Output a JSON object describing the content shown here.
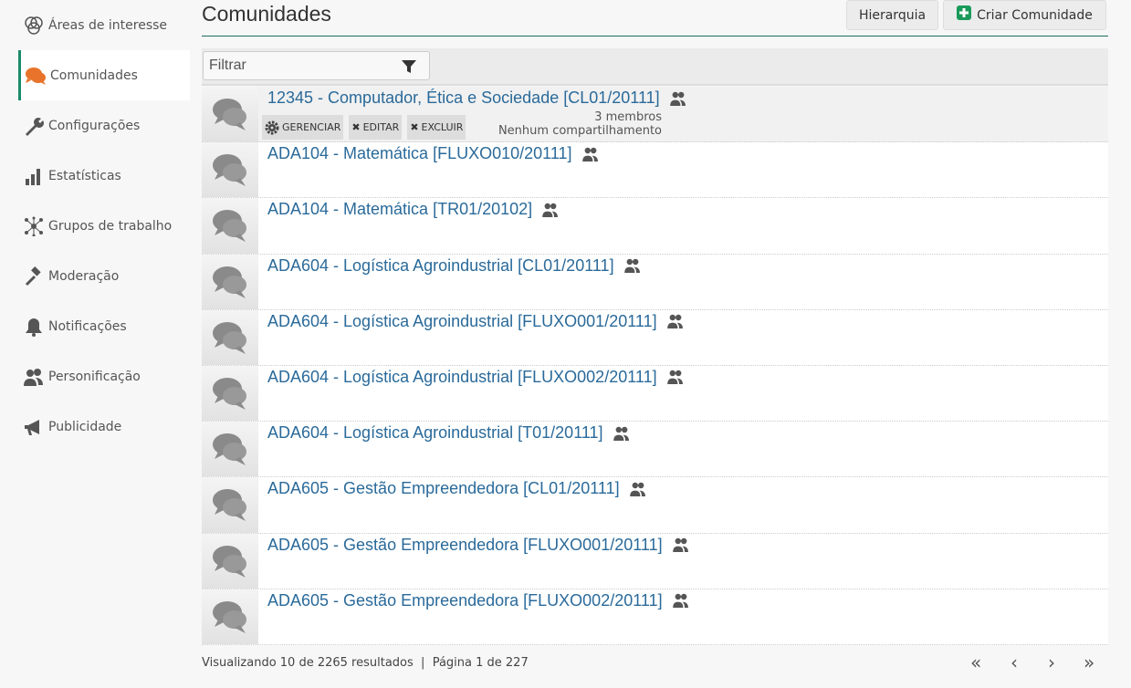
{
  "sidebar": {
    "items": [
      {
        "label": "Áreas de interesse",
        "icon": "circles-icon"
      },
      {
        "label": "Comunidades",
        "icon": "chat-bubbles-icon",
        "active": true
      },
      {
        "label": "Configurações",
        "icon": "wrench-icon"
      },
      {
        "label": "Estatísticas",
        "icon": "bar-chart-icon"
      },
      {
        "label": "Grupos de trabalho",
        "icon": "network-icon"
      },
      {
        "label": "Moderação",
        "icon": "gavel-icon"
      },
      {
        "label": "Notificações",
        "icon": "bell-icon"
      },
      {
        "label": "Personificação",
        "icon": "users-icon"
      },
      {
        "label": "Publicidade",
        "icon": "megaphone-icon"
      }
    ]
  },
  "header": {
    "title": "Comunidades",
    "hierarchy_label": "Hierarquia",
    "create_label": "Criar Comunidade"
  },
  "filter": {
    "placeholder": "Filtrar"
  },
  "actions": {
    "manage": "GERENCIAR",
    "edit": "EDITAR",
    "delete": "EXCLUIR"
  },
  "communities": [
    {
      "name": "12345 - Computador, Ética e Sociedade [CL01/20111]",
      "members": "3 membros",
      "sharing": "Nenhum compartilhamento"
    },
    {
      "name": "ADA104 - Matemática [FLUXO010/20111]"
    },
    {
      "name": "ADA104 - Matemática [TR01/20102]"
    },
    {
      "name": "ADA604 - Logística Agroindustrial [CL01/20111]"
    },
    {
      "name": "ADA604 - Logística Agroindustrial [FLUXO001/20111]"
    },
    {
      "name": "ADA604 - Logística Agroindustrial [FLUXO002/20111]"
    },
    {
      "name": "ADA604 - Logística Agroindustrial [T01/20111]"
    },
    {
      "name": "ADA605 - Gestão Empreendedora [CL01/20111]"
    },
    {
      "name": "ADA605 - Gestão Empreendedora [FLUXO001/20111]"
    },
    {
      "name": "ADA605 - Gestão Empreendedora [FLUXO002/20111]"
    }
  ],
  "footer": {
    "summary": "Visualizando 10 de 2265 resultados  |  Página 1 de 227"
  },
  "pagination": {
    "first": "«",
    "prev": "‹",
    "next": "›",
    "last": "»"
  },
  "colors": {
    "accent": "#1a8a6a",
    "link": "#2a6a9a",
    "active_icon": "#e8732a",
    "create_icon": "#1a9a5a"
  }
}
